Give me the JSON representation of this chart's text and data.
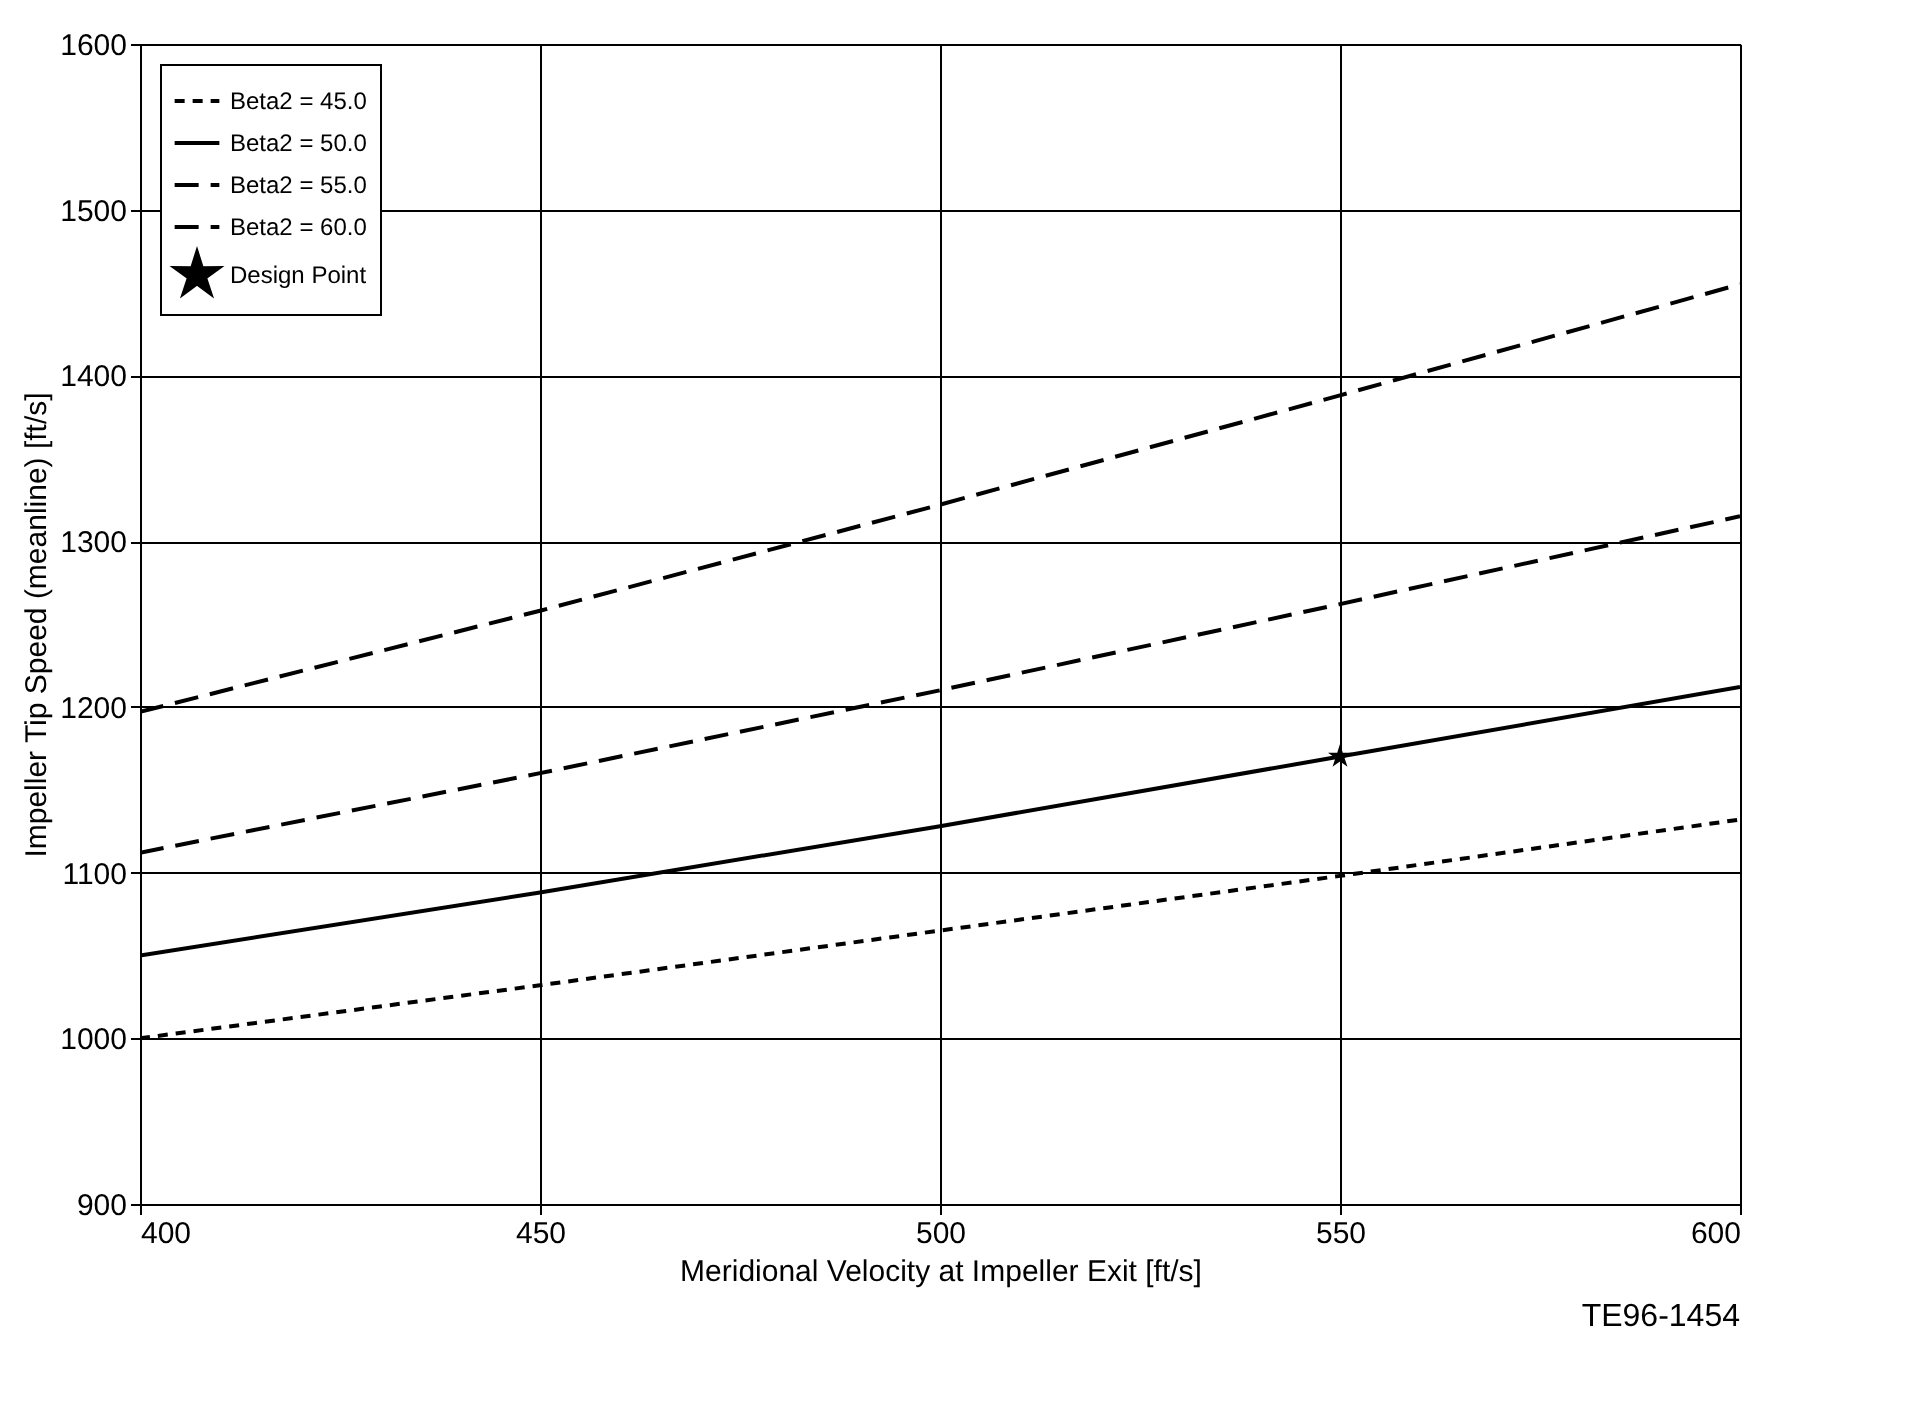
{
  "chart_data": {
    "type": "line",
    "xlabel": "Meridional Velocity at Impeller Exit [ft/s]",
    "ylabel": "Impeller Tip Speed (meanline) [ft/s]",
    "x": [
      400,
      450,
      500,
      550,
      600
    ],
    "series": [
      {
        "name": "Beta2 = 45.0",
        "color": "#000000",
        "line_style": "dotted",
        "values": [
          1000,
          1032,
          1065,
          1098,
          1132
        ]
      },
      {
        "name": "Beta2 = 50.0",
        "color": "#000000",
        "line_style": "solid",
        "values": [
          1050,
          1088,
          1128,
          1170,
          1212
        ]
      },
      {
        "name": "Beta2 = 55.0",
        "color": "#000000",
        "line_style": "dashed",
        "values": [
          1112,
          1160,
          1210,
          1262,
          1315
        ]
      },
      {
        "name": "Beta2 = 60.0",
        "color": "#000000",
        "line_style": "dashed",
        "values": [
          1197,
          1258,
          1322,
          1388,
          1455
        ]
      },
      {
        "name": "Design Point",
        "type": "scatter",
        "marker": "star",
        "color": "#000000",
        "x": [
          550
        ],
        "values": [
          1170
        ]
      }
    ],
    "xlim": [
      400,
      600
    ],
    "xticks": [
      400,
      450,
      500,
      550,
      600
    ],
    "ylim": [
      900,
      1600
    ],
    "yticks": [
      900,
      1000,
      1100,
      1200,
      1300,
      1400,
      1500,
      1600
    ],
    "grid": true,
    "legend": "top left",
    "annotations": [
      "TE96-1454"
    ]
  }
}
